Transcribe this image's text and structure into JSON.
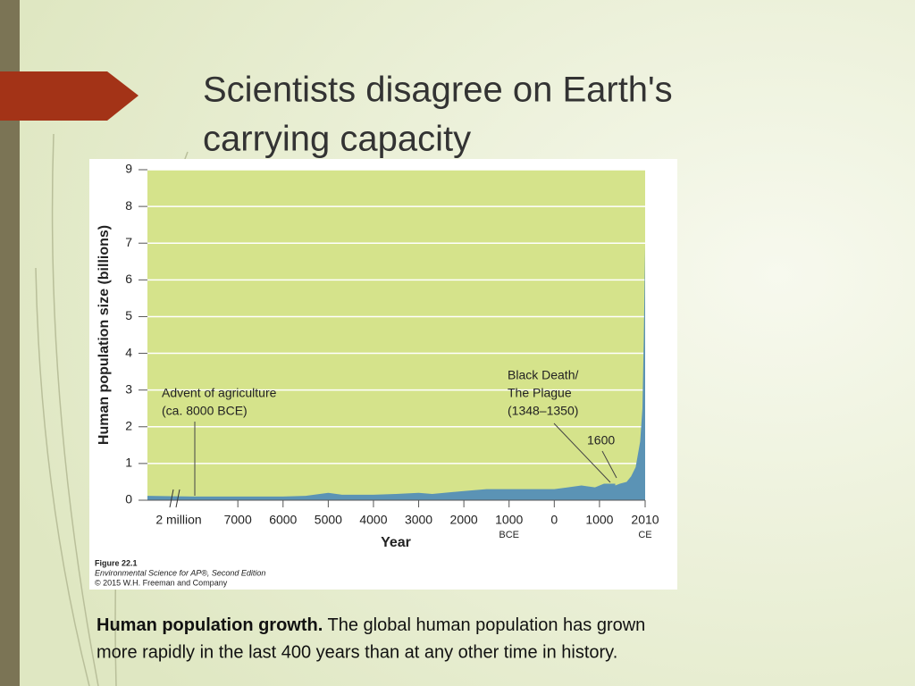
{
  "slide": {
    "title_lines": [
      "Scientists disagree on Earth's",
      "carrying capacity"
    ],
    "caption_bold": "Human population growth.",
    "caption_lines": [
      " The global human population has grown",
      "more rapidly in the last 400 years than at any other time in history."
    ]
  },
  "figure": {
    "number": "Figure 22.1",
    "source": "Environmental Science for AP®, Second Edition",
    "copyright": "© 2015 W.H. Freeman and Company"
  },
  "chart_data": {
    "type": "area",
    "y_label": "Human population size (billions)",
    "x_label": "Year",
    "x_break_label": "2 million",
    "x_era_labels": [
      "BCE",
      "CE"
    ],
    "annotations": [
      [
        "Advent of agriculture",
        "(ca. 8000 BCE)"
      ],
      [
        "Black Death/",
        "The Plague",
        "(1348–1350)"
      ],
      [
        "1600"
      ]
    ],
    "color": "#5b93b5",
    "plot_color": "#d5e38b",
    "grid": true,
    "xlim": [
      -9000,
      2010
    ],
    "ylim": [
      0,
      9
    ],
    "xticks": [
      {
        "value": -7000,
        "label": "7000"
      },
      {
        "value": -6000,
        "label": "6000"
      },
      {
        "value": -5000,
        "label": "5000"
      },
      {
        "value": -4000,
        "label": "4000"
      },
      {
        "value": -3000,
        "label": "3000"
      },
      {
        "value": -2000,
        "label": "2000"
      },
      {
        "value": -1000,
        "label": "1000"
      },
      0,
      1000,
      2010
    ],
    "yticks": [
      0,
      1,
      2,
      3,
      4,
      5,
      6,
      7,
      8,
      9
    ],
    "x": [
      -9000,
      -8000,
      -7000,
      -6000,
      -5500,
      -5000,
      -4700,
      -4000,
      -3500,
      -3000,
      -2700,
      -2000,
      -1500,
      -1000,
      -500,
      0,
      300,
      600,
      900,
      1100,
      1200,
      1348,
      1350,
      1450,
      1600,
      1700,
      1800,
      1900,
      1950,
      1980,
      2000,
      2010
    ],
    "values": [
      0.12,
      0.1,
      0.1,
      0.1,
      0.12,
      0.2,
      0.15,
      0.15,
      0.17,
      0.2,
      0.17,
      0.25,
      0.3,
      0.3,
      0.3,
      0.3,
      0.35,
      0.4,
      0.35,
      0.45,
      0.45,
      0.45,
      0.4,
      0.45,
      0.5,
      0.65,
      0.9,
      1.6,
      2.5,
      4.4,
      6.1,
      6.9
    ]
  }
}
